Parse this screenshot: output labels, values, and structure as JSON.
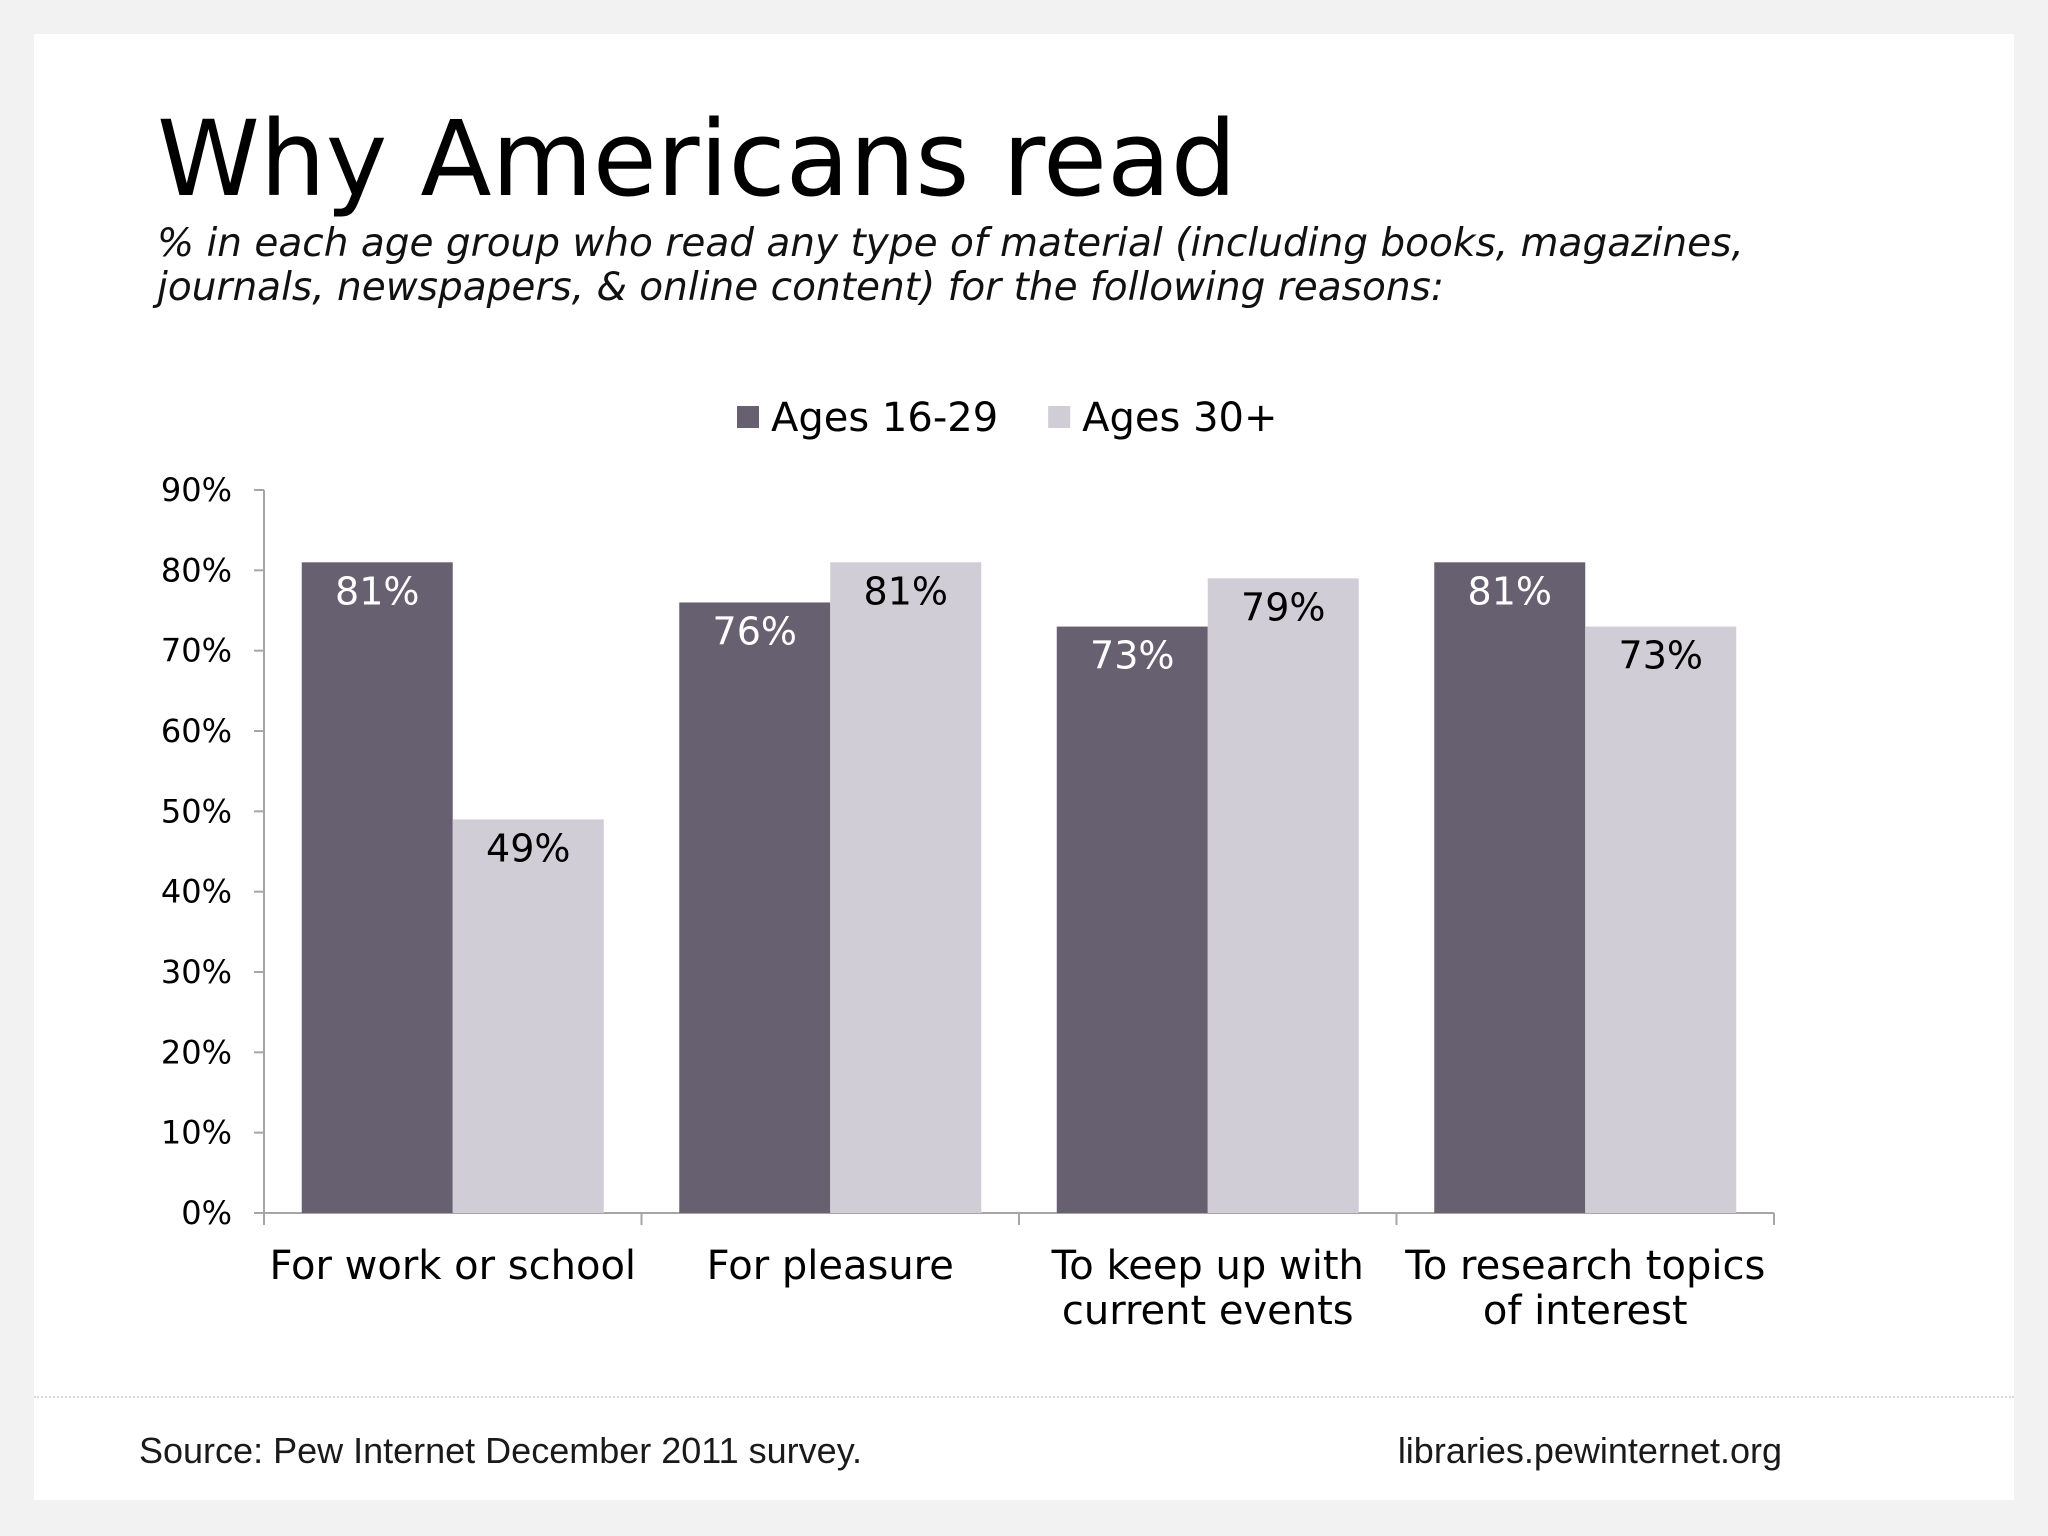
{
  "title": "Why Americans read",
  "subtitle_lines": [
    "% in each age group who read any type of material (including books, magazines,",
    "journals, newspapers, & online content) for the following reasons:"
  ],
  "footer": {
    "source": "Source: Pew Internet December 2011 survey.",
    "site": "libraries.pewinternet.org"
  },
  "colors": {
    "series_dark": "#676070",
    "series_light": "#d0cdd6",
    "axis": "#a6a6a6"
  },
  "chart_data": {
    "type": "bar",
    "title": "",
    "xlabel": "",
    "ylabel": "",
    "ylim": [
      0,
      90
    ],
    "yticks": [
      0,
      10,
      20,
      30,
      40,
      50,
      60,
      70,
      80,
      90
    ],
    "y_tick_format": "percent",
    "grid": false,
    "legend_position": "top",
    "categories": [
      [
        "For work or school"
      ],
      [
        "For pleasure"
      ],
      [
        "To keep up with",
        "current events"
      ],
      [
        "To research topics",
        "of interest"
      ]
    ],
    "series": [
      {
        "name": "Ages 16-29",
        "values": [
          81,
          76,
          73,
          81
        ],
        "color": "#676070",
        "label_color": "#ffffff"
      },
      {
        "name": "Ages 30+",
        "values": [
          49,
          81,
          79,
          73
        ],
        "color": "#d0cdd6",
        "label_color": "#000000"
      }
    ]
  }
}
